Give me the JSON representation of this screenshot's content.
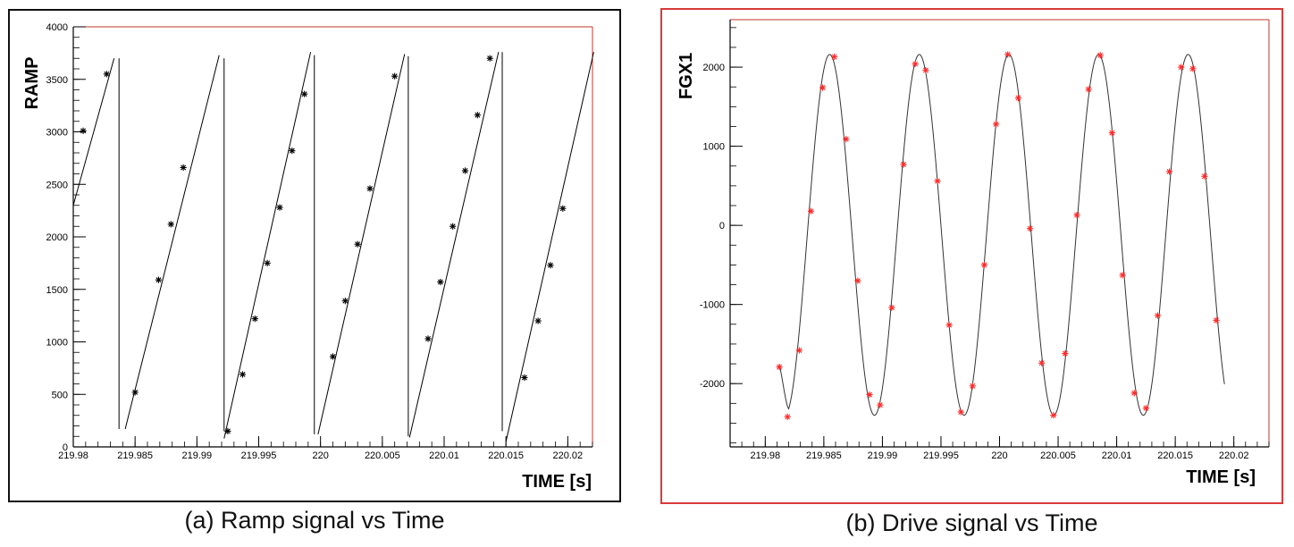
{
  "chart_data": [
    {
      "type": "line",
      "caption": "(a) Ramp signal vs Time",
      "xlabel": "TIME [s]",
      "ylabel": "RAMP",
      "xlim": [
        219.98,
        220.022
      ],
      "ylim": [
        0,
        4000
      ],
      "x_ticks": [
        "219.98",
        "219.985",
        "219.99",
        "219.995",
        "220",
        "220.005",
        "220.01",
        "220.015",
        "220.02"
      ],
      "y_ticks": [
        "0",
        "500",
        "1000",
        "1500",
        "2000",
        "2500",
        "3000",
        "3500",
        "4000"
      ],
      "line_color": "#000000",
      "marker_color": "#000000",
      "marker": "asterisk",
      "line_segments": [
        [
          [
            219.98,
            2300
          ],
          [
            219.9833,
            3700
          ]
        ],
        [
          [
            219.9837,
            3700
          ],
          [
            219.9837,
            170
          ]
        ],
        [
          [
            219.9842,
            170
          ],
          [
            219.9918,
            3730
          ]
        ],
        [
          [
            219.9922,
            3700
          ],
          [
            219.9922,
            150
          ]
        ],
        [
          [
            219.9922,
            80
          ],
          [
            219.9992,
            3760
          ]
        ],
        [
          [
            219.9995,
            3730
          ],
          [
            219.9995,
            120
          ]
        ],
        [
          [
            219.9998,
            120
          ],
          [
            220.0068,
            3740
          ]
        ],
        [
          [
            220.0071,
            3720
          ],
          [
            220.0071,
            100
          ]
        ],
        [
          [
            220.0072,
            90
          ],
          [
            220.0144,
            3760
          ]
        ],
        [
          [
            220.0147,
            3760
          ],
          [
            220.0147,
            150
          ]
        ],
        [
          [
            220.015,
            50
          ],
          [
            220.0221,
            3760
          ]
        ]
      ],
      "points": [
        [
          219.9808,
          3010
        ],
        [
          219.9827,
          3550
        ],
        [
          219.985,
          520
        ],
        [
          219.9869,
          1590
        ],
        [
          219.9879,
          2120
        ],
        [
          219.9889,
          2660
        ],
        [
          219.9925,
          150
        ],
        [
          219.9937,
          690
        ],
        [
          219.9947,
          1220
        ],
        [
          219.9957,
          1750
        ],
        [
          219.9967,
          2280
        ],
        [
          219.9977,
          2820
        ],
        [
          219.9987,
          3360
        ],
        [
          220.001,
          860
        ],
        [
          220.002,
          1390
        ],
        [
          220.003,
          1930
        ],
        [
          220.004,
          2460
        ],
        [
          220.006,
          3530
        ],
        [
          220.0087,
          1030
        ],
        [
          220.0097,
          1570
        ],
        [
          220.0107,
          2100
        ],
        [
          220.0117,
          2630
        ],
        [
          220.0127,
          3160
        ],
        [
          220.0137,
          3700
        ],
        [
          220.0165,
          660
        ],
        [
          220.0176,
          1200
        ],
        [
          220.0186,
          1730
        ],
        [
          220.0196,
          2270
        ]
      ]
    },
    {
      "type": "line",
      "caption": "(b) Drive signal vs Time",
      "xlabel": "TIME [s]",
      "ylabel": "FGX1",
      "xlim": [
        219.977,
        220.023
      ],
      "ylim": [
        -2800,
        2600
      ],
      "x_ticks": [
        "219.98",
        "219.985",
        "219.99",
        "219.995",
        "220",
        "220.005",
        "220.01",
        "220.015",
        "220.02"
      ],
      "y_ticks": [
        "-2000",
        "-1000",
        "0",
        "1000",
        "2000"
      ],
      "line_color": "#333333",
      "marker_color": "#ff2a2a",
      "marker": "asterisk",
      "curve": {
        "amplitude": 2280,
        "offset": -120,
        "period": 0.00765,
        "peak_at": 219.9855,
        "x_start": 219.9812,
        "x_end": 220.0192,
        "start_value": -1760,
        "start_blend_end": 219.982
      },
      "points": [
        [
          219.9812,
          -1790
        ],
        [
          219.9819,
          -2420
        ],
        [
          219.9829,
          -1580
        ],
        [
          219.9839,
          180
        ],
        [
          219.9849,
          1740
        ],
        [
          219.9859,
          2130
        ],
        [
          219.9869,
          1090
        ],
        [
          219.9879,
          -700
        ],
        [
          219.9889,
          -2140
        ],
        [
          219.9898,
          -2270
        ],
        [
          219.9908,
          -1040
        ],
        [
          219.9918,
          770
        ],
        [
          219.9928,
          2040
        ],
        [
          219.9937,
          1960
        ],
        [
          219.9947,
          560
        ],
        [
          219.9957,
          -1260
        ],
        [
          219.9967,
          -2360
        ],
        [
          219.9977,
          -2030
        ],
        [
          219.9987,
          -500
        ],
        [
          219.9997,
          1280
        ],
        [
          220.0007,
          2160
        ],
        [
          220.0016,
          1610
        ],
        [
          220.0026,
          -40
        ],
        [
          220.0036,
          -1740
        ],
        [
          220.0046,
          -2400
        ],
        [
          220.0056,
          -1620
        ],
        [
          220.0066,
          130
        ],
        [
          220.0076,
          1720
        ],
        [
          220.0086,
          2150
        ],
        [
          220.0096,
          1170
        ],
        [
          220.0105,
          -630
        ],
        [
          220.0115,
          -2120
        ],
        [
          220.0125,
          -2310
        ],
        [
          220.0135,
          -1140
        ],
        [
          220.0145,
          680
        ],
        [
          220.0155,
          2000
        ],
        [
          220.0165,
          1980
        ],
        [
          220.0175,
          620
        ],
        [
          220.0185,
          -1200
        ]
      ]
    }
  ]
}
